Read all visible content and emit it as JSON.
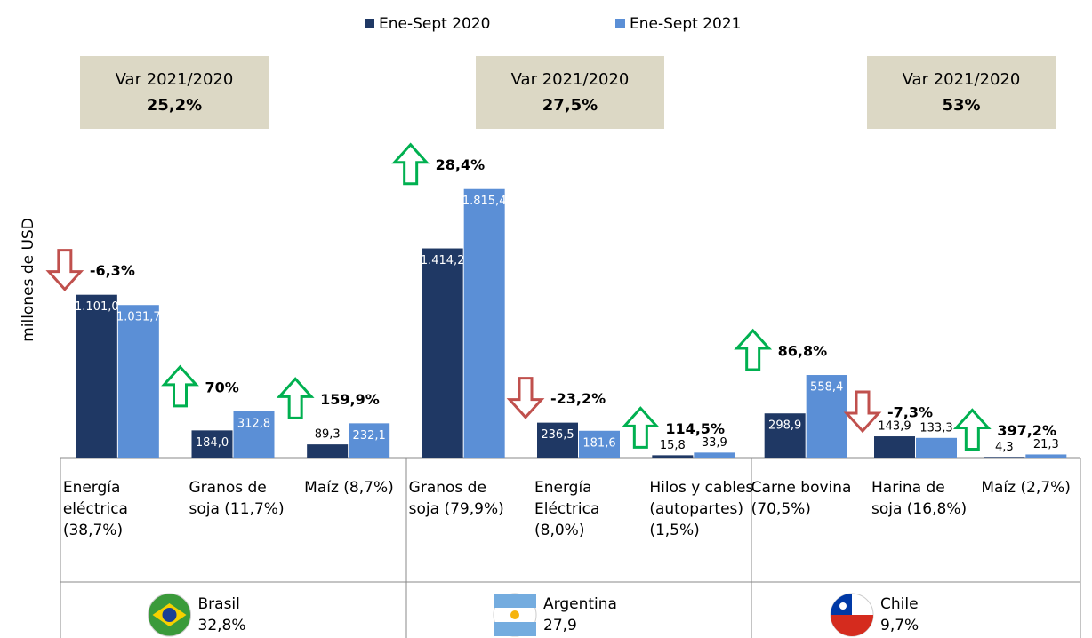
{
  "chart_data": {
    "type": "bar",
    "y_label": "millones de USD",
    "ylim": [
      0,
      2000
    ],
    "categories": [
      "Energía eléctrica (38,7%)",
      "Granos de soja (11,7%)",
      "Maíz (8,7%)",
      "Granos de soja (79,9%)",
      "Energía Eléctrica (8,0%)",
      "Hilos y cables (autopartes) (1,5%)",
      "Carne bovina (70,5%)",
      "Harina de soja (16,8%)",
      "Maíz (2,7%)"
    ],
    "series": [
      {
        "name": "Ene-Sept 2020",
        "color": "#1f3864",
        "values": [
          1101.0,
          184.0,
          89.3,
          1414.2,
          236.5,
          15.8,
          298.9,
          143.9,
          4.3
        ],
        "value_labels": [
          "1.101,0",
          "184,0",
          "89,3",
          "1.414,2",
          "236,5",
          "15,8",
          "298,9",
          "143,9",
          "4,3"
        ]
      },
      {
        "name": "Ene-Sept 2021",
        "color": "#5b8fd6",
        "values": [
          1031.7,
          312.8,
          232.1,
          1815.4,
          181.6,
          33.9,
          558.4,
          133.3,
          21.3
        ],
        "value_labels": [
          "1.031,7",
          "312,8",
          "232,1",
          "1.815,4",
          "181,6",
          "33,9",
          "558,4",
          "133,3",
          "21,3"
        ]
      }
    ],
    "changes": {
      "values": [
        -6.3,
        70,
        159.9,
        28.4,
        -23.2,
        114.5,
        86.8,
        -7.3,
        397.2
      ],
      "labels": [
        "-6,3%",
        "70%",
        "159,9%",
        "28,4%",
        "-23,2%",
        "114,5%",
        "86,8%",
        "-7,3%",
        "397,2%"
      ]
    },
    "groups": [
      {
        "name": "Brasil",
        "share": "32,8%",
        "var_title": "Var 2021/2020",
        "var_value": "25,2%"
      },
      {
        "name": "Argentina",
        "share": "27,9",
        "var_title": "Var 2021/2020",
        "var_value": "27,5%"
      },
      {
        "name": "Chile",
        "share": "9,7%",
        "var_title": "Var 2021/2020",
        "var_value": "53%"
      }
    ]
  }
}
